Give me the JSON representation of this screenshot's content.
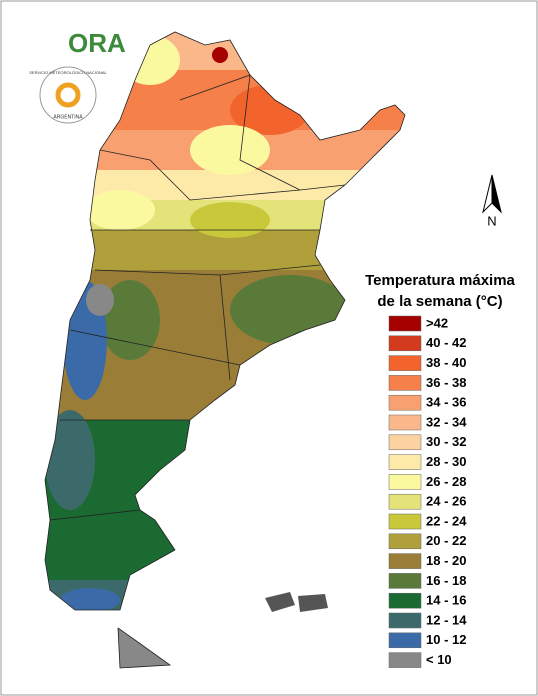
{
  "logo": {
    "brand": "ORA",
    "agency": "SERVICIO METEOROLÓGICO NACIONAL",
    "country": "ARGENTINA"
  },
  "north_label": "N",
  "legend": {
    "title_line1": "Temperatura máxima",
    "title_line2": "de la semana (°C)",
    "items": [
      {
        "label": ">42",
        "color": "#a50000"
      },
      {
        "label": "40 - 42",
        "color": "#d43a1e"
      },
      {
        "label": "38 - 40",
        "color": "#f2642c"
      },
      {
        "label": "36 - 38",
        "color": "#f6804a"
      },
      {
        "label": "34 - 36",
        "color": "#f8a070"
      },
      {
        "label": "32 - 34",
        "color": "#fab88a"
      },
      {
        "label": "30 - 32",
        "color": "#fcd2a0"
      },
      {
        "label": "28 - 30",
        "color": "#fde9a8"
      },
      {
        "label": "26 - 28",
        "color": "#fbf9a0"
      },
      {
        "label": "24 - 26",
        "color": "#e4e37a"
      },
      {
        "label": "22 - 24",
        "color": "#c8c83a"
      },
      {
        "label": "20 - 22",
        "color": "#b0a03c"
      },
      {
        "label": "18 - 20",
        "color": "#9a7e38"
      },
      {
        "label": "16 - 18",
        "color": "#5a7a3a"
      },
      {
        "label": "14 - 16",
        "color": "#1a6a32"
      },
      {
        "label": "12 - 14",
        "color": "#3c6a6a"
      },
      {
        "label": "10 - 12",
        "color": "#3a6aa8"
      },
      {
        "label": "< 10",
        "color": "#888888"
      }
    ]
  }
}
